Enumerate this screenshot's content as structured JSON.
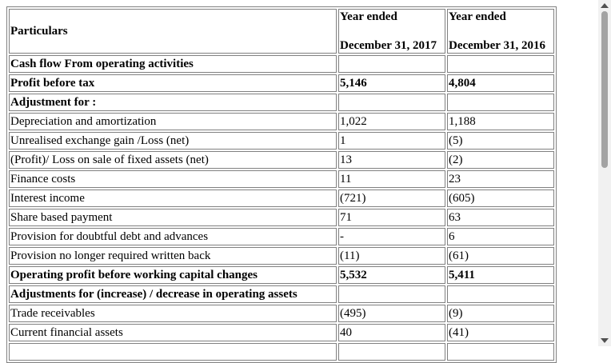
{
  "table": {
    "header": {
      "particulars": "Particulars",
      "col1": [
        "Year ended",
        "December 31, 2017"
      ],
      "col2": [
        "Year ended",
        "December 31, 2016"
      ]
    },
    "rows": [
      {
        "cells": [
          "Cash flow From operating activities"
        ],
        "bold": true
      },
      {
        "cells": [
          "Profit before tax",
          "5,146",
          "4,804"
        ],
        "bold": true
      },
      {
        "cells": [
          "Adjustment for :"
        ],
        "bold": true
      },
      {
        "cells": [
          "Depreciation and amortization",
          "1,022",
          "1,188"
        ],
        "bold": false
      },
      {
        "cells": [
          "Unrealised exchange gain /Loss (net)",
          "1",
          "(5)"
        ],
        "bold": false
      },
      {
        "cells": [
          "(Profit)/ Loss on sale of fixed assets (net)",
          "13",
          "(2)"
        ],
        "bold": false
      },
      {
        "cells": [
          "Finance costs",
          "11",
          "23"
        ],
        "bold": false
      },
      {
        "cells": [
          "Interest income",
          "(721)",
          "(605)"
        ],
        "bold": false
      },
      {
        "cells": [
          "Share based payment",
          "71",
          "63"
        ],
        "bold": false
      },
      {
        "cells": [
          "Provision for doubtful debt and advances",
          "-",
          "6"
        ],
        "bold": false
      },
      {
        "cells": [
          "Provision no longer required written back",
          "(11)",
          "(61)"
        ],
        "bold": false
      },
      {
        "cells": [
          "Operating profit before working capital changes",
          "5,532",
          "5,411"
        ],
        "bold": true
      },
      {
        "cells": [
          "Adjustments for (increase) / decrease in operating assets"
        ],
        "bold": true
      },
      {
        "cells": [
          "Trade receivables",
          "(495)",
          "(9)"
        ],
        "bold": false
      },
      {
        "cells": [
          "Current financial assets",
          "40",
          "(41)"
        ],
        "bold": false
      }
    ]
  }
}
